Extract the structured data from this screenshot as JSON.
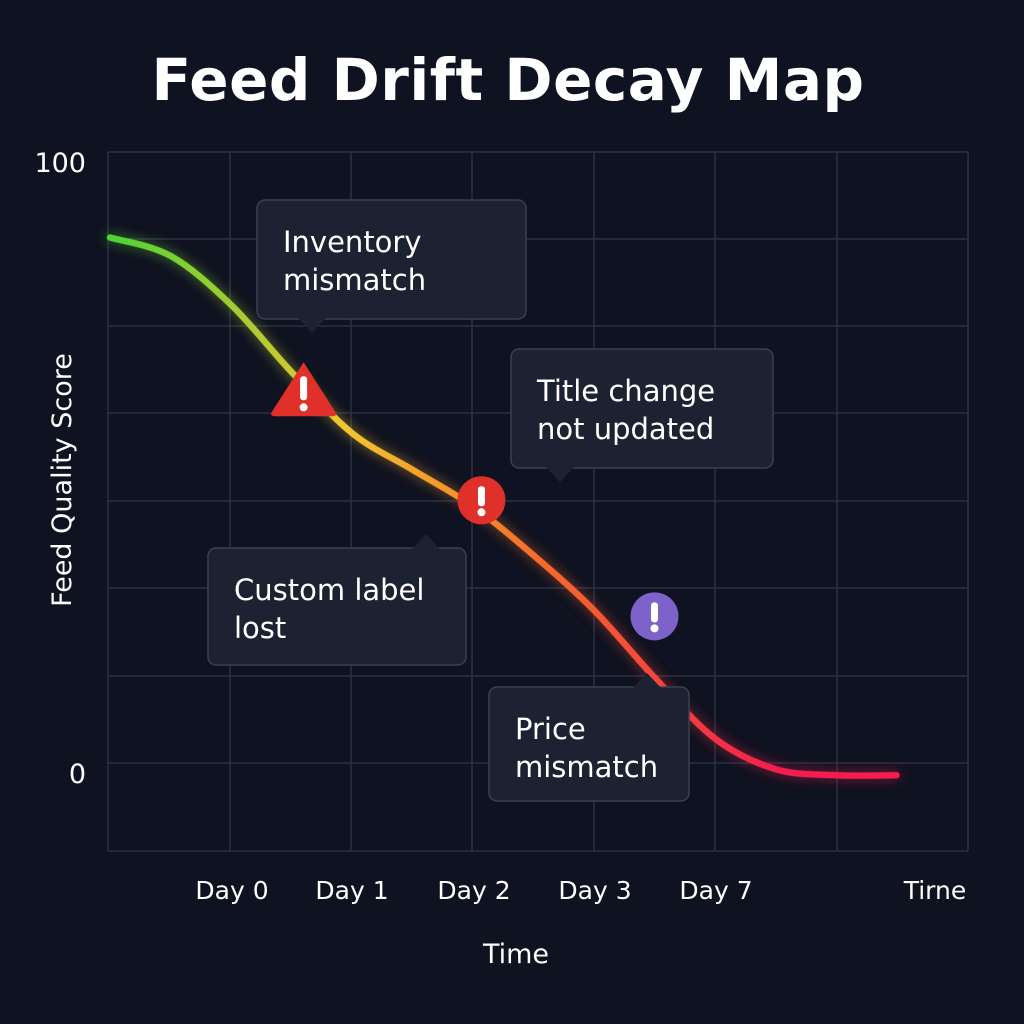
{
  "title": "Feed Drift Decay Map",
  "chart_data": {
    "type": "line",
    "title": "Feed Drift Decay Map",
    "xlabel": "Time",
    "ylabel": "Feed Quality Score",
    "y_ticks": [
      "100",
      "0"
    ],
    "ylim": [
      0,
      100
    ],
    "x_ticks": [
      "Day 0",
      "Day 1",
      "Day 2",
      "Day 3",
      "Day 7",
      "Tirne"
    ],
    "grid": true,
    "series": [
      {
        "x": [
          -1.0,
          -0.5,
          0.0,
          0.5,
          1.0,
          1.5,
          2.0,
          2.5,
          3.0,
          3.5,
          4.0,
          4.5,
          5.0,
          5.5
        ],
        "values": [
          86,
          83,
          75,
          64,
          54,
          48,
          42,
          34,
          25,
          14,
          4,
          -1,
          -2,
          -2
        ],
        "gradient_colors": [
          "#4cd437",
          "#f2c52e",
          "#f56a2a",
          "#f51d4f"
        ]
      }
    ],
    "annotations": [
      {
        "text_lines": [
          "Inventory",
          "mismatch"
        ],
        "x": 0.6,
        "y": 61,
        "marker": "warning-triangle",
        "marker_color": "#e0302a"
      },
      {
        "text_lines": [
          "Title change",
          "not updated"
        ],
        "x": 2.07,
        "y": 43,
        "marker": "alert-circle",
        "marker_color": "#e0302a"
      },
      {
        "text_lines": [
          "Custom label",
          "lost"
        ],
        "x": 2.07,
        "y": 43,
        "marker": "none",
        "marker_color": "#e0302a"
      },
      {
        "text_lines": [
          "Price",
          "mismatch"
        ],
        "x": 3.5,
        "y": 24,
        "marker": "alert-circle",
        "marker_color": "#7c62c9"
      }
    ]
  }
}
